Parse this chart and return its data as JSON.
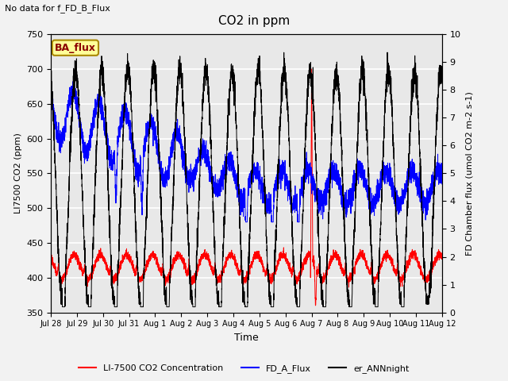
{
  "title": "CO2 in ppm",
  "top_left_text": "No data for f_FD_B_Flux",
  "ylabel_left": "LI7500 CO2 (ppm)",
  "ylabel_right": "FD Chamber flux (umol CO2 m-2 s-1)",
  "xlabel": "Time",
  "ylim_left": [
    350,
    750
  ],
  "ylim_right": [
    0.0,
    10.0
  ],
  "yticks_left": [
    350,
    400,
    450,
    500,
    550,
    600,
    650,
    700,
    750
  ],
  "yticks_right": [
    0.0,
    1.0,
    2.0,
    3.0,
    4.0,
    5.0,
    6.0,
    7.0,
    8.0,
    9.0,
    10.0
  ],
  "xtick_labels": [
    "Jul 28",
    "Jul 29",
    "Jul 30",
    "Jul 31",
    "Aug 1",
    "Aug 2",
    "Aug 3",
    "Aug 4",
    "Aug 5",
    "Aug 6",
    "Aug 7",
    "Aug 8",
    "Aug 9",
    "Aug 10",
    "Aug 11",
    "Aug 12"
  ],
  "legend_labels": [
    "LI-7500 CO2 Concentration",
    "FD_A_Flux",
    "er_ANNnight"
  ],
  "legend_colors": [
    "#ff0000",
    "#0000ff",
    "#000000"
  ],
  "box_label": "BA_flux",
  "box_color": "#ffff99",
  "box_edge_color": "#aa8800",
  "line_red_color": "#ff0000",
  "line_blue_color": "#0000ff",
  "line_black_color": "#000000",
  "bg_color": "#e8e8e8",
  "grid_color": "#ffffff",
  "n_days": 15,
  "seed": 42
}
